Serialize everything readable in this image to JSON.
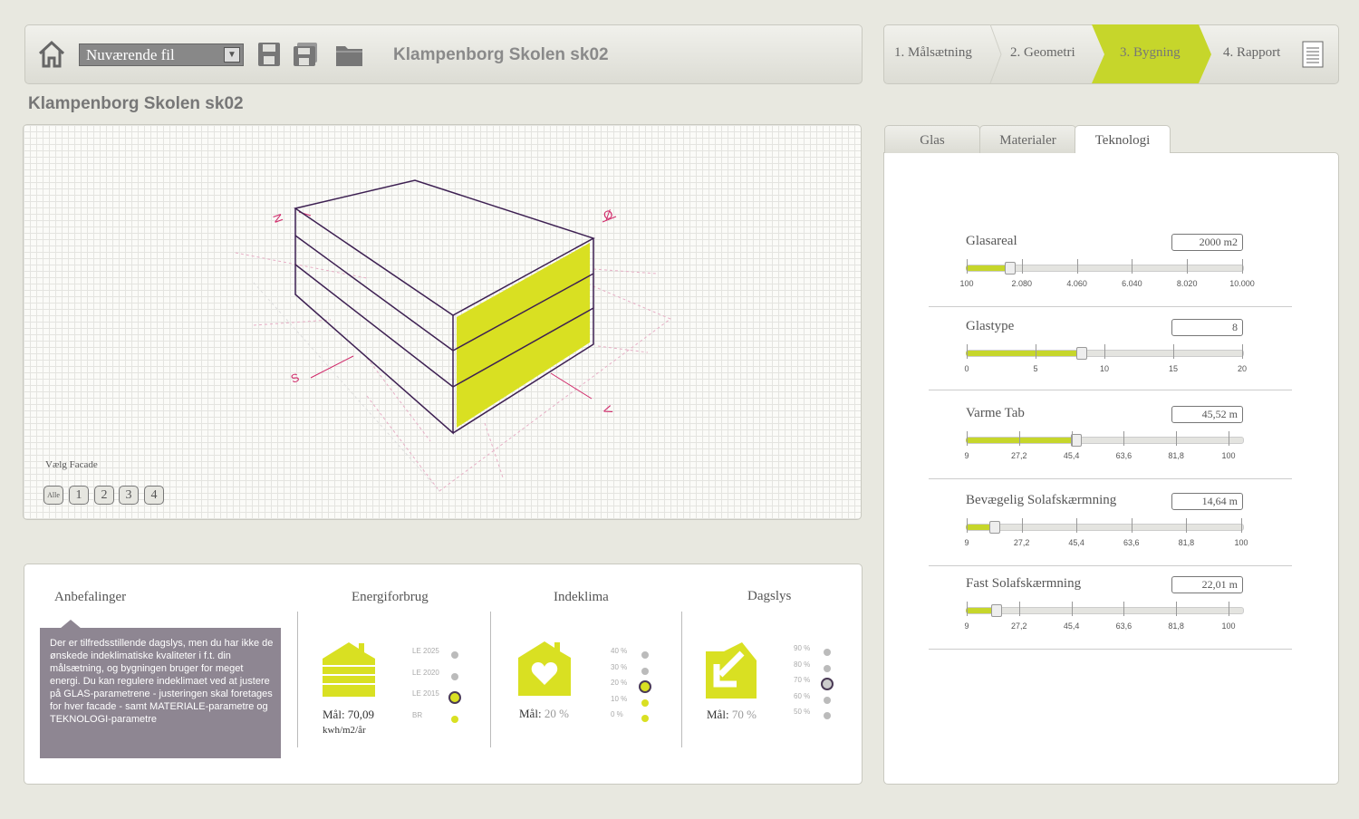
{
  "toolbar": {
    "file_select": "Nuværende fil",
    "title": "Klampenborg Skolen sk02"
  },
  "steps": [
    "1. Målsætning",
    "2. Geometri",
    "3. Bygning",
    "4. Rapport"
  ],
  "page_title": "Klampenborg Skolen sk02",
  "viewport": {
    "compass": [
      "N",
      "Ø",
      "S",
      "V"
    ],
    "facade_label": "Vælg Facade",
    "facade_buttons": [
      "Alle",
      "1",
      "2",
      "3",
      "4"
    ]
  },
  "tabs": [
    "Glas",
    "Materialer",
    "Teknologi"
  ],
  "sliders": [
    {
      "label": "Glasareal",
      "value": "2000 m2",
      "ticks": [
        "100",
        "2.080",
        "4.060",
        "6.040",
        "8.020",
        "10.000"
      ]
    },
    {
      "label": "Glastype",
      "value": "8",
      "ticks": [
        "0",
        "5",
        "10",
        "15",
        "20"
      ]
    },
    {
      "label": "Varme Tab",
      "value": "45,52 m",
      "ticks": [
        "9",
        "27,2",
        "45,4",
        "63,6",
        "81,8",
        "100"
      ]
    },
    {
      "label": "Bevægelig Solafskærmning",
      "value": "14,64 m",
      "ticks": [
        "9",
        "27,2",
        "45,4",
        "63,6",
        "81,8",
        "100"
      ]
    },
    {
      "label": "Fast Solafskærmning",
      "value": "22,01 m",
      "ticks": [
        "9",
        "27,2",
        "45,4",
        "63,6",
        "81,8",
        "100"
      ]
    }
  ],
  "recommendations": {
    "title": "Anbefalinger",
    "text": "Der er tilfredsstillende dagslys, men du har ikke de ønskede indeklimatiske kvaliteter i f.t. din målsætning, og bygningen bruger for meget energi. Du kan regulere indeklimaet ved at justere på GLAS-parametrene - justeringen skal foretages for hver facade - samt MATERIALE-parametre og TEKNOLOGI-parametre"
  },
  "energy": {
    "title": "Energiforbrug",
    "goal": "Mål: 70,09",
    "unit": "kwh/m2/år",
    "levels": [
      "LE 2025",
      "LE 2020",
      "LE 2015",
      "BR"
    ]
  },
  "indoor": {
    "title": "Indeklima",
    "goal_label": "Mål:",
    "goal_value": "20 %",
    "levels": [
      "40 %",
      "30 %",
      "20 %",
      "10 %",
      "0 %"
    ]
  },
  "daylight": {
    "title": "Dagslys",
    "goal_label": "Mål:",
    "goal_value": "70 %",
    "levels": [
      "90 %",
      "80 %",
      "70 %",
      "60 %",
      "50 %"
    ]
  }
}
